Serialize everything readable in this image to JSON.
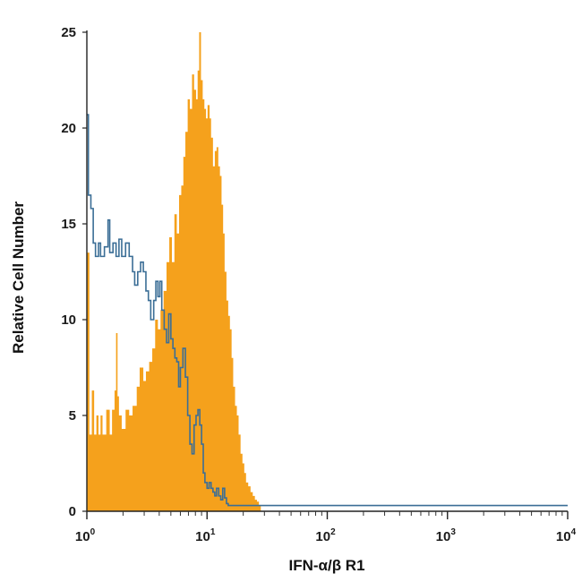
{
  "chart_data": {
    "type": "histogram",
    "title": "",
    "xlabel": "IFN-α/β R1",
    "ylabel": "Relative Cell Number",
    "x_scale": "log",
    "xlim": [
      1,
      10000
    ],
    "ylim": [
      0,
      25
    ],
    "x_ticks": [
      {
        "value": 1,
        "base": "10",
        "exp": "0"
      },
      {
        "value": 10,
        "base": "10",
        "exp": "1"
      },
      {
        "value": 100,
        "base": "10",
        "exp": "2"
      },
      {
        "value": 1000,
        "base": "10",
        "exp": "3"
      },
      {
        "value": 10000,
        "base": "10",
        "exp": "4"
      }
    ],
    "y_ticks": [
      "0",
      "5",
      "10",
      "15",
      "20",
      "25"
    ],
    "grid": false,
    "legend": "none",
    "series": [
      {
        "style": "filled",
        "color": "#f5a11c",
        "points": [
          [
            1.0,
            13.5
          ],
          [
            1.05,
            4.0
          ],
          [
            1.1,
            6.3
          ],
          [
            1.15,
            4.0
          ],
          [
            1.2,
            5.0
          ],
          [
            1.25,
            4.0
          ],
          [
            1.3,
            5.0
          ],
          [
            1.35,
            4.0
          ],
          [
            1.45,
            5.3
          ],
          [
            1.55,
            4.0
          ],
          [
            1.62,
            5.3
          ],
          [
            1.7,
            6.3
          ],
          [
            1.75,
            9.3
          ],
          [
            1.8,
            6.0
          ],
          [
            1.85,
            5.0
          ],
          [
            1.95,
            4.3
          ],
          [
            2.1,
            5.3
          ],
          [
            2.25,
            5.0
          ],
          [
            2.4,
            5.5
          ],
          [
            2.6,
            6.5
          ],
          [
            2.75,
            7.5
          ],
          [
            2.95,
            6.8
          ],
          [
            3.1,
            7.3
          ],
          [
            3.3,
            7.8
          ],
          [
            3.5,
            8.5
          ],
          [
            3.7,
            10.0
          ],
          [
            3.9,
            9.5
          ],
          [
            4.1,
            10.5
          ],
          [
            4.35,
            11.5
          ],
          [
            4.6,
            13.0
          ],
          [
            4.85,
            14.3
          ],
          [
            5.1,
            13.0
          ],
          [
            5.35,
            15.5
          ],
          [
            5.6,
            14.5
          ],
          [
            5.85,
            16.5
          ],
          [
            6.1,
            17.0
          ],
          [
            6.35,
            18.5
          ],
          [
            6.6,
            19.8
          ],
          [
            6.9,
            21.5
          ],
          [
            7.2,
            21.0
          ],
          [
            7.5,
            22.8
          ],
          [
            7.8,
            22.0
          ],
          [
            8.1,
            21.5
          ],
          [
            8.35,
            23.0
          ],
          [
            8.6,
            25.0
          ],
          [
            8.9,
            22.5
          ],
          [
            9.2,
            21.5
          ],
          [
            9.5,
            21.0
          ],
          [
            9.8,
            20.5
          ],
          [
            10.1,
            21.2
          ],
          [
            10.5,
            20.5
          ],
          [
            10.8,
            19.5
          ],
          [
            11.2,
            18.0
          ],
          [
            11.6,
            18.8
          ],
          [
            12.0,
            19.0
          ],
          [
            12.4,
            18.0
          ],
          [
            12.8,
            17.5
          ],
          [
            13.2,
            16.0
          ],
          [
            13.6,
            14.5
          ],
          [
            14.0,
            12.5
          ],
          [
            14.5,
            11.0
          ],
          [
            15.0,
            10.2
          ],
          [
            15.5,
            9.5
          ],
          [
            16.0,
            8.0
          ],
          [
            16.5,
            6.5
          ],
          [
            17.1,
            5.5
          ],
          [
            17.7,
            5.0
          ],
          [
            18.3,
            4.0
          ],
          [
            19.0,
            3.0
          ],
          [
            19.7,
            2.5
          ],
          [
            20.4,
            2.0
          ],
          [
            21.1,
            1.5
          ],
          [
            22.0,
            1.3
          ],
          [
            23.0,
            1.0
          ],
          [
            24.0,
            0.8
          ],
          [
            25.0,
            0.6
          ],
          [
            26.0,
            0.5
          ],
          [
            27.0,
            0.3
          ],
          [
            28.0,
            0.0
          ]
        ]
      },
      {
        "style": "outline",
        "color": "#3b6e96",
        "points": [
          [
            1.0,
            20.7
          ],
          [
            1.03,
            16.5
          ],
          [
            1.08,
            15.8
          ],
          [
            1.13,
            14.0
          ],
          [
            1.18,
            13.3
          ],
          [
            1.25,
            14.0
          ],
          [
            1.3,
            13.3
          ],
          [
            1.4,
            13.8
          ],
          [
            1.5,
            15.2
          ],
          [
            1.55,
            13.5
          ],
          [
            1.65,
            14.0
          ],
          [
            1.75,
            13.3
          ],
          [
            1.85,
            14.2
          ],
          [
            1.95,
            13.3
          ],
          [
            2.1,
            14.0
          ],
          [
            2.25,
            13.3
          ],
          [
            2.4,
            12.5
          ],
          [
            2.5,
            11.8
          ],
          [
            2.65,
            12.5
          ],
          [
            2.8,
            13.0
          ],
          [
            2.95,
            12.5
          ],
          [
            3.1,
            11.5
          ],
          [
            3.25,
            11.0
          ],
          [
            3.4,
            10.0
          ],
          [
            3.6,
            11.0
          ],
          [
            3.75,
            12.0
          ],
          [
            3.9,
            11.2
          ],
          [
            4.05,
            12.0
          ],
          [
            4.2,
            10.5
          ],
          [
            4.4,
            9.5
          ],
          [
            4.6,
            8.8
          ],
          [
            4.8,
            10.3
          ],
          [
            5.0,
            9.0
          ],
          [
            5.2,
            8.5
          ],
          [
            5.4,
            8.0
          ],
          [
            5.6,
            7.8
          ],
          [
            5.8,
            6.5
          ],
          [
            6.0,
            7.5
          ],
          [
            6.3,
            8.5
          ],
          [
            6.6,
            7.0
          ],
          [
            6.9,
            5.0
          ],
          [
            7.2,
            3.5
          ],
          [
            7.5,
            3.0
          ],
          [
            7.8,
            4.5
          ],
          [
            8.1,
            5.0
          ],
          [
            8.4,
            5.3
          ],
          [
            8.7,
            4.5
          ],
          [
            9.0,
            3.5
          ],
          [
            9.3,
            2.0
          ],
          [
            9.6,
            1.5
          ],
          [
            10.0,
            1.2
          ],
          [
            10.4,
            1.5
          ],
          [
            10.8,
            1.2
          ],
          [
            11.2,
            1.0
          ],
          [
            11.6,
            0.8
          ],
          [
            12.0,
            1.2
          ],
          [
            12.5,
            0.8
          ],
          [
            13.0,
            0.6
          ],
          [
            13.5,
            1.2
          ],
          [
            14.0,
            0.7
          ],
          [
            14.5,
            0.4
          ],
          [
            15.0,
            0.3
          ],
          [
            17.0,
            0.3
          ],
          [
            50.0,
            0.3
          ],
          [
            200.0,
            0.3
          ],
          [
            1000.0,
            0.3
          ],
          [
            5000.0,
            0.3
          ],
          [
            10000.0,
            0.3
          ]
        ]
      }
    ]
  }
}
